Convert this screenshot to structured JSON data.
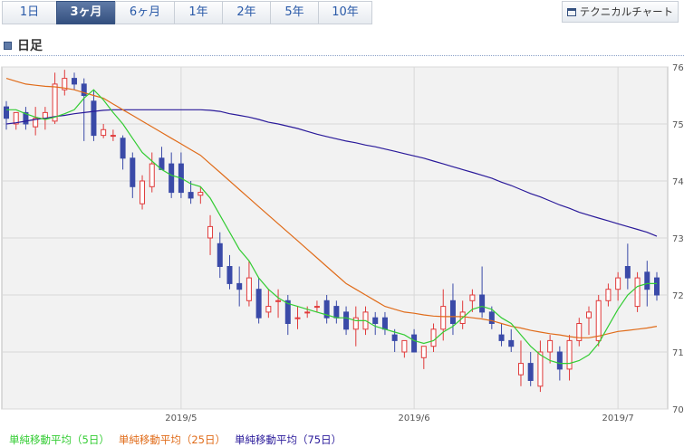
{
  "tabs": [
    {
      "label": "1日",
      "active": false
    },
    {
      "label": "3ヶ月",
      "active": true
    },
    {
      "label": "6ヶ月",
      "active": false
    },
    {
      "label": "1年",
      "active": false
    },
    {
      "label": "2年",
      "active": false
    },
    {
      "label": "5年",
      "active": false
    },
    {
      "label": "10年",
      "active": false
    }
  ],
  "technical_chart_label": "テクニカルチャート",
  "section_title": "日足",
  "legend": [
    {
      "label": "単純移動平均（5日）",
      "color": "#33cc33"
    },
    {
      "label": "単純移動平均（25日）",
      "color": "#e06c1a"
    },
    {
      "label": "単純移動平均（75日）",
      "color": "#2a1a9a"
    }
  ],
  "colors": {
    "up": "#e03a3a",
    "down": "#3a4aa8",
    "grid": "#d8d8d8",
    "plot_bg": "#f2f2f2"
  },
  "chart_data": {
    "type": "candlestick",
    "ylim": [
      70,
      76
    ],
    "yticks": [
      70,
      71,
      72,
      73,
      74,
      75,
      76
    ],
    "xtick_labels": [
      {
        "label": "2019/5",
        "index": 18
      },
      {
        "label": "2019/6",
        "index": 42
      },
      {
        "label": "2019/7",
        "index": 63
      }
    ],
    "candles": [
      [
        75.3,
        75.4,
        74.9,
        75.1
      ],
      [
        75.0,
        75.2,
        74.9,
        75.2
      ],
      [
        75.2,
        75.3,
        74.9,
        75.0
      ],
      [
        74.95,
        75.3,
        74.8,
        75.1
      ],
      [
        75.1,
        75.3,
        74.9,
        75.2
      ],
      [
        75.05,
        75.9,
        75.0,
        75.7
      ],
      [
        75.6,
        75.95,
        75.5,
        75.8
      ],
      [
        75.8,
        75.9,
        75.6,
        75.7
      ],
      [
        75.7,
        75.8,
        74.7,
        75.5
      ],
      [
        75.4,
        75.6,
        74.7,
        74.8
      ],
      [
        74.8,
        75.0,
        74.75,
        74.9
      ],
      [
        74.8,
        74.9,
        74.7,
        74.8
      ],
      [
        74.75,
        74.8,
        74.2,
        74.4
      ],
      [
        74.4,
        74.5,
        73.7,
        73.9
      ],
      [
        73.6,
        74.1,
        73.5,
        74.0
      ],
      [
        73.9,
        74.5,
        73.8,
        74.3
      ],
      [
        74.4,
        74.6,
        74.2,
        74.2
      ],
      [
        74.3,
        74.5,
        73.7,
        73.8
      ],
      [
        74.3,
        74.5,
        73.7,
        73.8
      ],
      [
        73.8,
        74.0,
        73.6,
        73.7
      ],
      [
        73.75,
        73.9,
        73.6,
        73.8
      ],
      [
        73.0,
        73.4,
        72.7,
        73.2
      ],
      [
        72.9,
        73.1,
        72.3,
        72.5
      ],
      [
        72.5,
        72.7,
        72.1,
        72.2
      ],
      [
        72.2,
        72.5,
        71.8,
        72.1
      ],
      [
        71.9,
        72.6,
        71.8,
        72.3
      ],
      [
        72.1,
        72.3,
        71.5,
        71.6
      ],
      [
        71.7,
        72.1,
        71.6,
        71.8
      ],
      [
        71.9,
        72.1,
        71.6,
        71.9
      ],
      [
        71.9,
        72.0,
        71.3,
        71.5
      ],
      [
        71.6,
        71.8,
        71.4,
        71.6
      ],
      [
        71.7,
        71.8,
        71.6,
        71.7
      ],
      [
        71.8,
        71.9,
        71.7,
        71.8
      ],
      [
        71.9,
        72.0,
        71.5,
        71.6
      ],
      [
        71.8,
        71.9,
        71.5,
        71.6
      ],
      [
        71.7,
        71.8,
        71.3,
        71.4
      ],
      [
        71.4,
        71.8,
        71.1,
        71.6
      ],
      [
        71.4,
        71.8,
        71.3,
        71.7
      ],
      [
        71.6,
        71.7,
        71.3,
        71.5
      ],
      [
        71.6,
        71.7,
        71.3,
        71.4
      ],
      [
        71.3,
        71.4,
        71.0,
        71.2
      ],
      [
        71.0,
        71.2,
        70.9,
        71.2
      ],
      [
        71.3,
        71.4,
        71.0,
        71.0
      ],
      [
        70.9,
        71.1,
        70.7,
        71.1
      ],
      [
        71.1,
        71.5,
        71.0,
        71.4
      ],
      [
        71.4,
        72.1,
        71.2,
        71.8
      ],
      [
        71.9,
        72.2,
        71.3,
        71.5
      ],
      [
        71.5,
        71.9,
        71.4,
        71.7
      ],
      [
        71.9,
        72.1,
        71.7,
        72.0
      ],
      [
        72.0,
        72.5,
        71.6,
        71.7
      ],
      [
        71.7,
        71.8,
        71.4,
        71.5
      ],
      [
        71.3,
        71.5,
        71.1,
        71.2
      ],
      [
        71.2,
        71.4,
        71.0,
        71.1
      ],
      [
        70.6,
        71.2,
        70.4,
        70.8
      ],
      [
        70.8,
        71.0,
        70.4,
        70.5
      ],
      [
        70.4,
        71.2,
        70.3,
        71.0
      ],
      [
        71.0,
        71.3,
        70.8,
        71.2
      ],
      [
        71.0,
        71.1,
        70.5,
        70.7
      ],
      [
        70.7,
        71.3,
        70.5,
        71.2
      ],
      [
        71.2,
        71.6,
        71.1,
        71.5
      ],
      [
        71.6,
        71.8,
        71.3,
        71.7
      ],
      [
        71.2,
        72.0,
        71.1,
        71.9
      ],
      [
        71.9,
        72.2,
        71.8,
        72.1
      ],
      [
        72.1,
        72.4,
        71.9,
        72.3
      ],
      [
        72.5,
        72.9,
        72.1,
        72.3
      ],
      [
        71.8,
        72.4,
        71.7,
        72.3
      ],
      [
        72.4,
        72.6,
        71.8,
        72.1
      ],
      [
        72.3,
        72.4,
        71.9,
        72.0
      ]
    ],
    "sma5": [
      75.25,
      75.25,
      75.18,
      75.12,
      75.08,
      75.12,
      75.18,
      75.25,
      75.45,
      75.6,
      75.42,
      75.2,
      75.0,
      74.75,
      74.5,
      74.35,
      74.2,
      74.1,
      74.05,
      73.95,
      73.9,
      73.7,
      73.4,
      73.1,
      72.8,
      72.6,
      72.3,
      72.1,
      71.95,
      71.85,
      71.8,
      71.75,
      71.7,
      71.65,
      71.6,
      71.6,
      71.55,
      71.55,
      71.45,
      71.4,
      71.35,
      71.3,
      71.2,
      71.15,
      71.2,
      71.35,
      71.45,
      71.6,
      71.75,
      71.8,
      71.75,
      71.6,
      71.5,
      71.3,
      71.1,
      70.95,
      70.85,
      70.8,
      70.8,
      70.85,
      70.95,
      71.15,
      71.45,
      71.75,
      72.0,
      72.15,
      72.2,
      72.2
    ],
    "sma25": [
      75.8,
      75.75,
      75.7,
      75.68,
      75.66,
      75.65,
      75.63,
      75.6,
      75.55,
      75.5,
      75.45,
      75.35,
      75.25,
      75.15,
      75.05,
      74.95,
      74.85,
      74.75,
      74.65,
      74.55,
      74.45,
      74.3,
      74.15,
      74.0,
      73.85,
      73.7,
      73.55,
      73.4,
      73.25,
      73.1,
      72.95,
      72.8,
      72.65,
      72.5,
      72.35,
      72.2,
      72.1,
      72.0,
      71.9,
      71.8,
      71.75,
      71.7,
      71.68,
      71.65,
      71.63,
      71.62,
      71.62,
      71.62,
      71.6,
      71.58,
      71.55,
      71.5,
      71.45,
      71.42,
      71.38,
      71.35,
      71.32,
      71.3,
      71.27,
      71.25,
      71.25,
      71.28,
      71.32,
      71.36,
      71.38,
      71.4,
      71.42,
      71.45
    ],
    "sma75": [
      75.0,
      75.02,
      75.05,
      75.08,
      75.1,
      75.13,
      75.15,
      75.18,
      75.2,
      75.22,
      75.24,
      75.25,
      75.25,
      75.25,
      75.25,
      75.25,
      75.25,
      75.25,
      75.25,
      75.25,
      75.25,
      75.24,
      75.22,
      75.18,
      75.15,
      75.12,
      75.08,
      75.03,
      75.0,
      74.96,
      74.92,
      74.87,
      74.82,
      74.78,
      74.74,
      74.7,
      74.67,
      74.63,
      74.6,
      74.56,
      74.52,
      74.48,
      74.44,
      74.4,
      74.35,
      74.3,
      74.25,
      74.2,
      74.15,
      74.1,
      74.05,
      73.98,
      73.92,
      73.85,
      73.78,
      73.72,
      73.65,
      73.58,
      73.52,
      73.45,
      73.4,
      73.35,
      73.3,
      73.25,
      73.2,
      73.15,
      73.1,
      73.03
    ]
  }
}
